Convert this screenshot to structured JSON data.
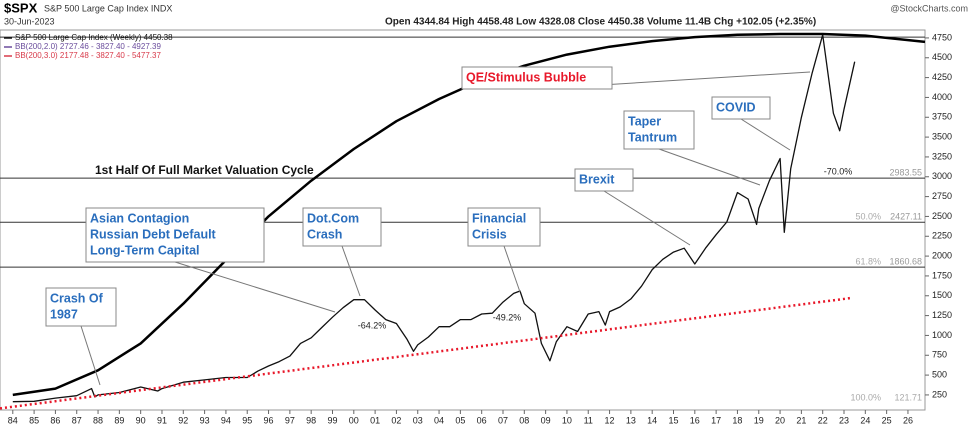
{
  "chart_data": {
    "type": "line",
    "title": "$SPX",
    "subtitle": "S&P 500 Large Cap Index INDX",
    "date": "30-Jun-2023",
    "quote": "Open 4344.84 High 4458.48 Low 4328.08 Close 4450.38 Volume 11.4B Chg +102.05 (+2.35%)",
    "source": "@StockCharts.com",
    "legend_extra": [
      "BB(200,2.0) 2727.46 - 3827.40 - 4927.39",
      "BB(200,3.0) 2177.48 - 3827.40 - 5477.37"
    ],
    "xlim": [
      1983.4,
      2026.8
    ],
    "ylim": [
      60,
      4850
    ],
    "xticks": [
      {
        "value": 1984,
        "label": "84"
      },
      {
        "value": 1985,
        "label": "85"
      },
      {
        "value": 1986,
        "label": "86"
      },
      {
        "value": 1987,
        "label": "87"
      },
      {
        "value": 1988,
        "label": "88"
      },
      {
        "value": 1989,
        "label": "89"
      },
      {
        "value": 1990,
        "label": "90"
      },
      {
        "value": 1991,
        "label": "91"
      },
      {
        "value": 1992,
        "label": "92"
      },
      {
        "value": 1993,
        "label": "93"
      },
      {
        "value": 1994,
        "label": "94"
      },
      {
        "value": 1995,
        "label": "95"
      },
      {
        "value": 1996,
        "label": "96"
      },
      {
        "value": 1997,
        "label": "97"
      },
      {
        "value": 1998,
        "label": "98"
      },
      {
        "value": 1999,
        "label": "99"
      },
      {
        "value": 2000,
        "label": "00"
      },
      {
        "value": 2001,
        "label": "01"
      },
      {
        "value": 2002,
        "label": "02"
      },
      {
        "value": 2003,
        "label": "03"
      },
      {
        "value": 2004,
        "label": "04"
      },
      {
        "value": 2005,
        "label": "05"
      },
      {
        "value": 2006,
        "label": "06"
      },
      {
        "value": 2007,
        "label": "07"
      },
      {
        "value": 2008,
        "label": "08"
      },
      {
        "value": 2009,
        "label": "09"
      },
      {
        "value": 2010,
        "label": "10"
      },
      {
        "value": 2011,
        "label": "11"
      },
      {
        "value": 2012,
        "label": "12"
      },
      {
        "value": 2013,
        "label": "13"
      },
      {
        "value": 2014,
        "label": "14"
      },
      {
        "value": 2015,
        "label": "15"
      },
      {
        "value": 2016,
        "label": "16"
      },
      {
        "value": 2017,
        "label": "17"
      },
      {
        "value": 2018,
        "label": "18"
      },
      {
        "value": 2019,
        "label": "19"
      },
      {
        "value": 2020,
        "label": "20"
      },
      {
        "value": 2021,
        "label": "21"
      },
      {
        "value": 2022,
        "label": "22"
      },
      {
        "value": 2023,
        "label": "23"
      },
      {
        "value": 2024,
        "label": "24"
      },
      {
        "value": 2025,
        "label": "25"
      },
      {
        "value": 2026,
        "label": "26"
      }
    ],
    "yticks": [
      250,
      500,
      750,
      1000,
      1250,
      1500,
      1750,
      2000,
      2250,
      2500,
      2750,
      3000,
      3250,
      3500,
      3750,
      4000,
      4250,
      4500,
      4750
    ],
    "series": [
      {
        "name": "S&P 500 Large Cap Index (Weekly) 4450.38",
        "color": "#111111",
        "x": [
          1984,
          1985,
          1986,
          1987,
          1987.7,
          1987.85,
          1988,
          1989,
          1990,
          1990.8,
          1991,
          1992,
          1993,
          1994,
          1995,
          1995.5,
          1996,
          1996.5,
          1997,
          1997.5,
          1998,
          1998.5,
          1999,
          1999.5,
          2000,
          2000.5,
          2001,
          2001.5,
          2002,
          2002.5,
          2002.8,
          2003,
          2003.5,
          2004,
          2004.5,
          2005,
          2005.5,
          2006,
          2006.5,
          2007,
          2007.5,
          2007.8,
          2008,
          2008.5,
          2008.8,
          2009.2,
          2009.5,
          2010,
          2010.5,
          2011,
          2011.5,
          2011.8,
          2012,
          2012.5,
          2013,
          2013.5,
          2014,
          2014.5,
          2015,
          2015.5,
          2016,
          2016.5,
          2017,
          2017.5,
          2018,
          2018.5,
          2018.9,
          2019,
          2019.5,
          2020,
          2020.2,
          2020.5,
          2021,
          2021.5,
          2022,
          2022.5,
          2022.8,
          2023,
          2023.5
        ],
        "values": [
          165,
          170,
          210,
          240,
          330,
          225,
          250,
          280,
          350,
          300,
          330,
          410,
          440,
          470,
          470,
          550,
          615,
          670,
          740,
          900,
          970,
          1100,
          1230,
          1350,
          1450,
          1450,
          1320,
          1200,
          1150,
          950,
          800,
          880,
          980,
          1110,
          1110,
          1200,
          1200,
          1270,
          1280,
          1420,
          1530,
          1560,
          1400,
          1280,
          900,
          680,
          920,
          1110,
          1050,
          1270,
          1300,
          1130,
          1300,
          1360,
          1460,
          1620,
          1830,
          1960,
          2050,
          2100,
          1900,
          2100,
          2270,
          2430,
          2800,
          2720,
          2400,
          2600,
          2950,
          3230,
          2300,
          3100,
          3750,
          4300,
          4790,
          3800,
          3580,
          3850,
          4450
        ]
      },
      {
        "color": "#000000",
        "width": 2.5,
        "x": [
          1984,
          1986,
          1988,
          1990,
          1992,
          1994,
          1996,
          1998,
          2000,
          2002,
          2004,
          2006,
          2008,
          2010,
          2012,
          2014,
          2016,
          2018,
          2020,
          2022,
          2024,
          2026.8
        ],
        "values": [
          250,
          330,
          560,
          900,
          1400,
          1950,
          2500,
          2950,
          3350,
          3700,
          3980,
          4220,
          4400,
          4540,
          4640,
          4710,
          4760,
          4790,
          4800,
          4800,
          4780,
          4700
        ]
      },
      {
        "color": "#e8182a",
        "dash": true,
        "width": 2.5,
        "x": [
          1983.4,
          2023.3
        ],
        "values": [
          80,
          1470
        ]
      }
    ],
    "reference_lines": [
      {
        "value": 4760
      },
      {
        "value": 2983.55,
        "label": "2983.55"
      },
      {
        "value": 2427.11,
        "level": "50.0%",
        "label": "2427.11"
      },
      {
        "value": 1860.68,
        "level": "61.8%",
        "label": "1860.68"
      }
    ],
    "floor_label": {
      "level": "100.0%",
      "label": "121.71"
    },
    "drawdowns": [
      "-64.2%",
      "-49.2%",
      "-70.0%"
    ],
    "annotations": [
      [
        "QE/Stimulus Bubble"
      ],
      [
        "COVID"
      ],
      [
        "Taper",
        "Tantrum"
      ],
      [
        "Brexit"
      ],
      [
        "Financial",
        "Crisis"
      ],
      [
        "Dot.Com",
        "Crash"
      ],
      [
        "Asian Contagion",
        "Russian Debt Default",
        "Long-Term Capital"
      ],
      [
        "Crash Of",
        "1987"
      ]
    ],
    "cycle_label": "1st Half Of Full Market Valuation Cycle"
  }
}
